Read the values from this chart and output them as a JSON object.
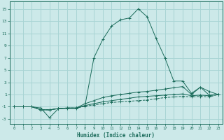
{
  "xlabel": "Humidex (Indice chaleur)",
  "xlim": [
    -0.5,
    23.5
  ],
  "ylim": [
    -3.8,
    16.2
  ],
  "yticks": [
    -3,
    -1,
    1,
    3,
    5,
    7,
    9,
    11,
    13,
    15
  ],
  "xticks": [
    0,
    1,
    2,
    3,
    4,
    5,
    6,
    7,
    8,
    9,
    10,
    11,
    12,
    13,
    14,
    15,
    16,
    17,
    18,
    19,
    20,
    21,
    22,
    23
  ],
  "bg_color": "#cce9e9",
  "grid_color": "#a8d4d4",
  "line_color": "#1a6b5a",
  "series": [
    {
      "x": [
        0,
        1,
        2,
        3,
        4,
        5,
        6,
        7,
        8,
        9,
        10,
        11,
        12,
        13,
        14,
        15,
        16,
        17,
        18,
        19,
        20,
        21,
        22,
        23
      ],
      "y": [
        -1.0,
        -1.0,
        -1.0,
        -1.2,
        -2.8,
        -1.3,
        -1.3,
        -1.3,
        -0.8,
        7.0,
        10.0,
        12.2,
        13.2,
        13.5,
        15.0,
        13.7,
        10.2,
        7.0,
        3.2,
        3.2,
        1.2,
        2.2,
        1.5,
        1.0
      ],
      "style": "-",
      "marker": "+"
    },
    {
      "x": [
        0,
        1,
        2,
        3,
        4,
        5,
        6,
        7,
        8,
        9,
        10,
        11,
        12,
        13,
        14,
        15,
        16,
        17,
        18,
        19,
        20,
        21,
        22,
        23
      ],
      "y": [
        -1.0,
        -1.0,
        -1.0,
        -1.5,
        -1.5,
        -1.3,
        -1.2,
        -1.2,
        -0.5,
        0.0,
        0.5,
        0.8,
        1.0,
        1.2,
        1.4,
        1.5,
        1.7,
        1.9,
        2.1,
        2.3,
        1.0,
        2.2,
        0.9,
        1.0
      ],
      "style": "-",
      "marker": "+"
    },
    {
      "x": [
        0,
        1,
        2,
        3,
        4,
        5,
        6,
        7,
        8,
        9,
        10,
        11,
        12,
        13,
        14,
        15,
        16,
        17,
        18,
        19,
        20,
        21,
        22,
        23
      ],
      "y": [
        -1.0,
        -1.0,
        -1.0,
        -1.5,
        -1.5,
        -1.3,
        -1.2,
        -1.2,
        -0.8,
        -0.5,
        -0.2,
        0.0,
        0.2,
        0.4,
        0.6,
        0.7,
        0.8,
        0.9,
        1.0,
        1.1,
        0.8,
        0.9,
        0.8,
        1.0
      ],
      "style": "-",
      "marker": "+"
    },
    {
      "x": [
        0,
        1,
        2,
        3,
        4,
        5,
        6,
        7,
        8,
        9,
        10,
        11,
        12,
        13,
        14,
        15,
        16,
        17,
        18,
        19,
        20,
        21,
        22,
        23
      ],
      "y": [
        -1.0,
        -1.0,
        -1.0,
        -1.5,
        -1.5,
        -1.3,
        -1.2,
        -1.2,
        -0.9,
        -0.7,
        -0.5,
        -0.3,
        -0.2,
        -0.1,
        0.0,
        0.1,
        0.3,
        0.5,
        0.6,
        0.7,
        0.6,
        0.7,
        0.6,
        1.0
      ],
      "style": "--",
      "marker": "+"
    }
  ]
}
